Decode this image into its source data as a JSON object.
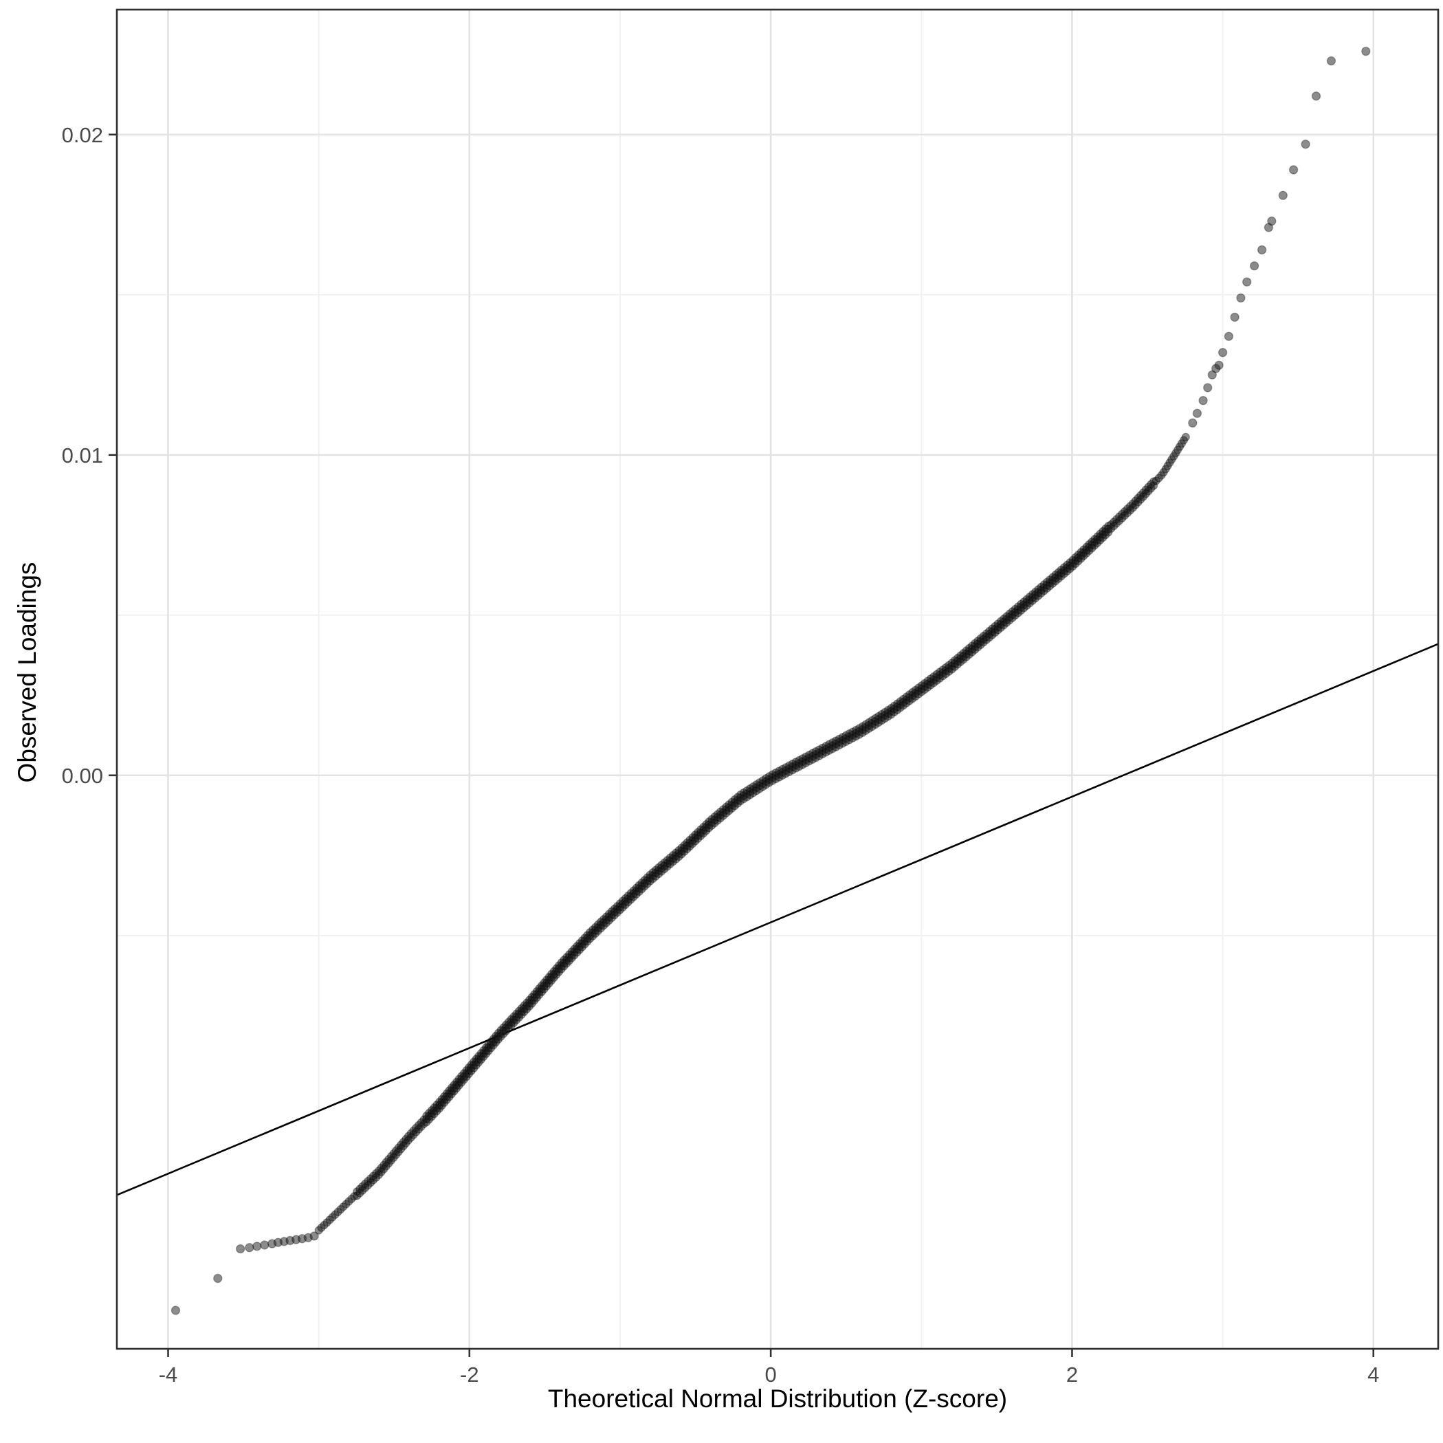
{
  "chart_data": {
    "type": "scatter",
    "title": "",
    "xlabel": "Theoretical Normal Distribution (Z-score)",
    "ylabel": "Observed Loadings",
    "xlim": [
      -4.34,
      4.43
    ],
    "ylim": [
      -0.0179,
      0.0239
    ],
    "x_breaks": [
      -4,
      -2,
      0,
      2,
      4
    ],
    "x_labels": [
      "-4",
      "-2",
      "0",
      "2",
      "4"
    ],
    "x_minor_breaks": [
      -3,
      -1,
      1,
      3
    ],
    "y_breaks": [
      0,
      0.01,
      0.02
    ],
    "y_labels": [
      "0.00",
      "0.01",
      "0.02"
    ],
    "y_minor_breaks": [
      -0.005,
      0.005,
      0.015
    ],
    "grid": true,
    "legend": "none",
    "panel_border": true,
    "reference_line": {
      "x1": -4.34,
      "y1": -0.0131,
      "x2": 4.43,
      "y2": 0.0041
    },
    "series": [
      {
        "name": "qq-band",
        "render": "dense-band",
        "anchors": [
          [
            -3.0,
            -0.0142
          ],
          [
            -2.8,
            -0.0133
          ],
          [
            -2.6,
            -0.0124
          ],
          [
            -2.4,
            -0.0113
          ],
          [
            -2.2,
            -0.0103
          ],
          [
            -2.0,
            -0.0092
          ],
          [
            -1.8,
            -0.0081
          ],
          [
            -1.6,
            -0.0071
          ],
          [
            -1.4,
            -0.006
          ],
          [
            -1.2,
            -0.005
          ],
          [
            -1.0,
            -0.0041
          ],
          [
            -0.8,
            -0.0032
          ],
          [
            -0.6,
            -0.0024
          ],
          [
            -0.4,
            -0.0015
          ],
          [
            -0.2,
            -0.0007
          ],
          [
            0.0,
            -0.0001
          ],
          [
            0.2,
            0.0004
          ],
          [
            0.4,
            0.0009
          ],
          [
            0.6,
            0.0014
          ],
          [
            0.8,
            0.002
          ],
          [
            1.0,
            0.0027
          ],
          [
            1.2,
            0.0034
          ],
          [
            1.4,
            0.0042
          ],
          [
            1.6,
            0.005
          ],
          [
            1.8,
            0.0058
          ],
          [
            2.0,
            0.0066
          ],
          [
            2.2,
            0.0075
          ],
          [
            2.4,
            0.0084
          ],
          [
            2.6,
            0.0094
          ],
          [
            2.76,
            0.0106
          ]
        ]
      },
      {
        "name": "left-shelf",
        "render": "points",
        "points": [
          [
            -3.52,
            -0.01478
          ],
          [
            -3.46,
            -0.01474
          ],
          [
            -3.41,
            -0.0147
          ],
          [
            -3.36,
            -0.01466
          ],
          [
            -3.31,
            -0.01462
          ],
          [
            -3.27,
            -0.01458
          ],
          [
            -3.23,
            -0.01455
          ],
          [
            -3.19,
            -0.01452
          ],
          [
            -3.15,
            -0.01449
          ],
          [
            -3.11,
            -0.01446
          ],
          [
            -3.07,
            -0.01443
          ],
          [
            -3.03,
            -0.01438
          ]
        ]
      },
      {
        "name": "left-outliers",
        "render": "points",
        "points": [
          [
            -3.95,
            -0.0167
          ],
          [
            -3.67,
            -0.0157
          ]
        ]
      },
      {
        "name": "right-tail",
        "render": "points",
        "points": [
          [
            2.8,
            0.011
          ],
          [
            2.83,
            0.0113
          ],
          [
            2.87,
            0.0117
          ],
          [
            2.9,
            0.0121
          ],
          [
            2.93,
            0.0125
          ],
          [
            2.955,
            0.0127
          ],
          [
            2.975,
            0.0128
          ],
          [
            3.0,
            0.0132
          ],
          [
            3.04,
            0.0137
          ],
          [
            3.08,
            0.0143
          ],
          [
            3.12,
            0.0149
          ],
          [
            3.16,
            0.0154
          ],
          [
            3.21,
            0.0159
          ],
          [
            3.26,
            0.0164
          ],
          [
            3.305,
            0.0171
          ],
          [
            3.325,
            0.0173
          ],
          [
            3.4,
            0.0181
          ],
          [
            3.47,
            0.0189
          ],
          [
            3.55,
            0.0197
          ],
          [
            3.62,
            0.0212
          ],
          [
            3.72,
            0.0223
          ],
          [
            3.95,
            0.0226
          ]
        ]
      }
    ],
    "colors": {
      "point": "#1a1a1a",
      "reference_line": "#000000",
      "grid_major": "#E3E3E3",
      "grid_minor": "#F0F0F0",
      "panel_border": "#2F2F2F",
      "tick": "#333333",
      "tick_label": "#4A4A4A",
      "axis_title": "#000000",
      "background": "#FFFFFF"
    }
  }
}
